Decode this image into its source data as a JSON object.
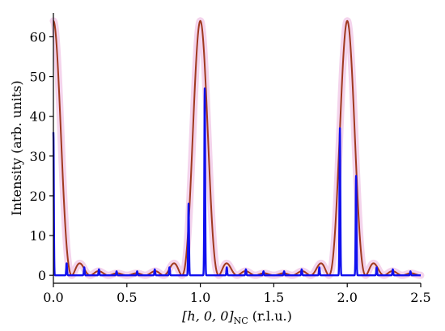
{
  "chart_data": {
    "type": "line",
    "xlabel": "[h, 0, 0]_NC (r.l.u.)",
    "xlabel_parts": {
      "main": "[h, 0, 0]",
      "sub": "NC",
      "suffix": " (r.l.u.)"
    },
    "ylabel": "Intensity (arb. units)",
    "xlim": [
      0.0,
      2.5
    ],
    "ylim": [
      -2,
      66
    ],
    "xticks": [
      0.0,
      0.5,
      1.0,
      1.5,
      2.0,
      2.5
    ],
    "xtick_labels": [
      "0.0",
      "0.5",
      "1.0",
      "1.5",
      "2.0",
      "2.5"
    ],
    "yticks": [
      0,
      10,
      20,
      30,
      40,
      50,
      60
    ],
    "ytick_labels": [
      "0",
      "10",
      "20",
      "30",
      "40",
      "50",
      "60"
    ],
    "grid": false,
    "series": [
      {
        "color": "#a0391f",
        "glow": "#f4d4ec",
        "model": "sinc2",
        "peak_centers": [
          0.0,
          1.0,
          2.0
        ],
        "peak_height": 64,
        "fringe_period": 0.125
      },
      {
        "color": "#1010ee",
        "model": "spikes",
        "peaks": [
          {
            "x": 0.0,
            "y": 36
          },
          {
            "x": 0.09,
            "y": 3
          },
          {
            "x": 0.21,
            "y": 2
          },
          {
            "x": 0.31,
            "y": 1.5
          },
          {
            "x": 0.43,
            "y": 1
          },
          {
            "x": 0.57,
            "y": 1
          },
          {
            "x": 0.69,
            "y": 1.5
          },
          {
            "x": 0.79,
            "y": 2
          },
          {
            "x": 0.92,
            "y": 18
          },
          {
            "x": 1.03,
            "y": 47
          },
          {
            "x": 1.18,
            "y": 2
          },
          {
            "x": 1.31,
            "y": 1.5
          },
          {
            "x": 1.43,
            "y": 1
          },
          {
            "x": 1.57,
            "y": 1
          },
          {
            "x": 1.69,
            "y": 1.5
          },
          {
            "x": 1.81,
            "y": 2
          },
          {
            "x": 1.95,
            "y": 37
          },
          {
            "x": 2.06,
            "y": 25
          },
          {
            "x": 2.2,
            "y": 2
          },
          {
            "x": 2.31,
            "y": 1.5
          },
          {
            "x": 2.43,
            "y": 1
          }
        ]
      }
    ]
  }
}
